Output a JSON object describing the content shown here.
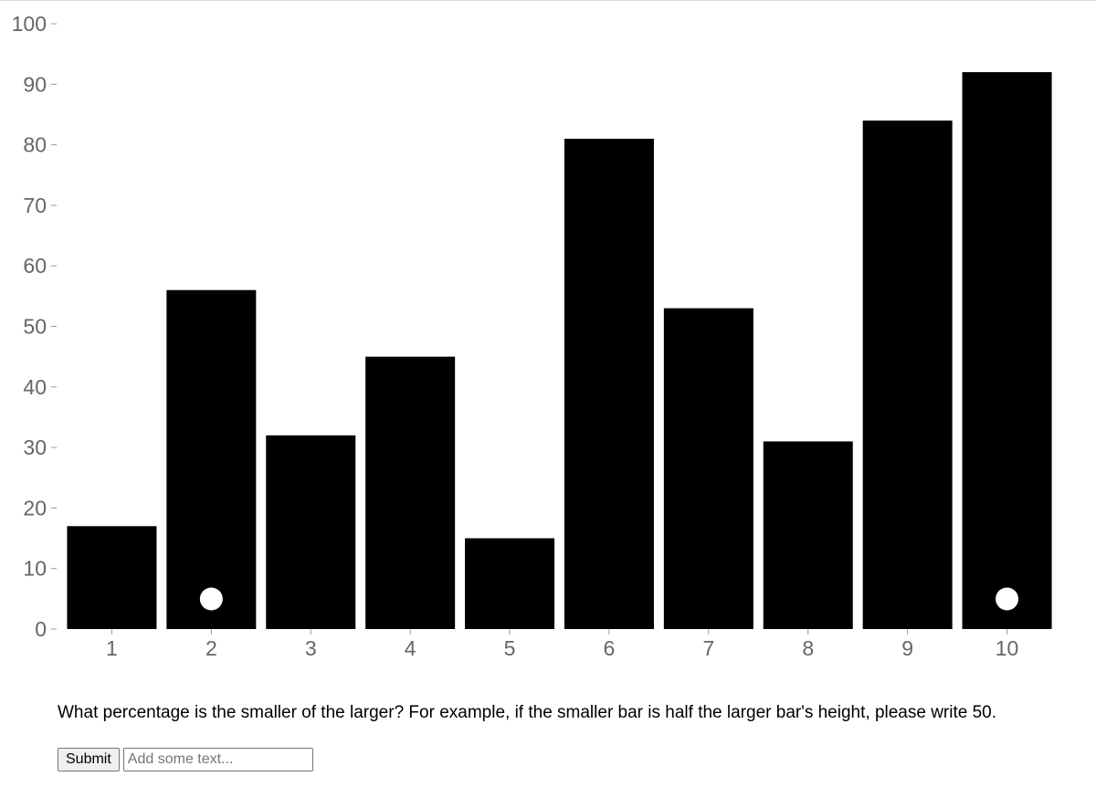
{
  "chart_data": {
    "type": "bar",
    "categories": [
      "1",
      "2",
      "3",
      "4",
      "5",
      "6",
      "7",
      "8",
      "9",
      "10"
    ],
    "values": [
      17,
      56,
      32,
      45,
      15,
      81,
      53,
      31,
      84,
      92
    ],
    "marked_categories": [
      "2",
      "10"
    ],
    "ylim": [
      0,
      100
    ],
    "yticks": [
      0,
      10,
      20,
      30,
      40,
      50,
      60,
      70,
      80,
      90,
      100
    ],
    "title": "",
    "xlabel": "",
    "ylabel": "",
    "bar_color": "#000000",
    "marker_color": "#ffffff",
    "tick_color": "#999999",
    "label_color": "#666666",
    "grid": false
  },
  "question": "What percentage is the smaller of the larger? For example, if the smaller bar is half the larger bar's height, please write 50.",
  "form": {
    "submit_label": "Submit",
    "input_placeholder": "Add some text...",
    "input_value": ""
  }
}
